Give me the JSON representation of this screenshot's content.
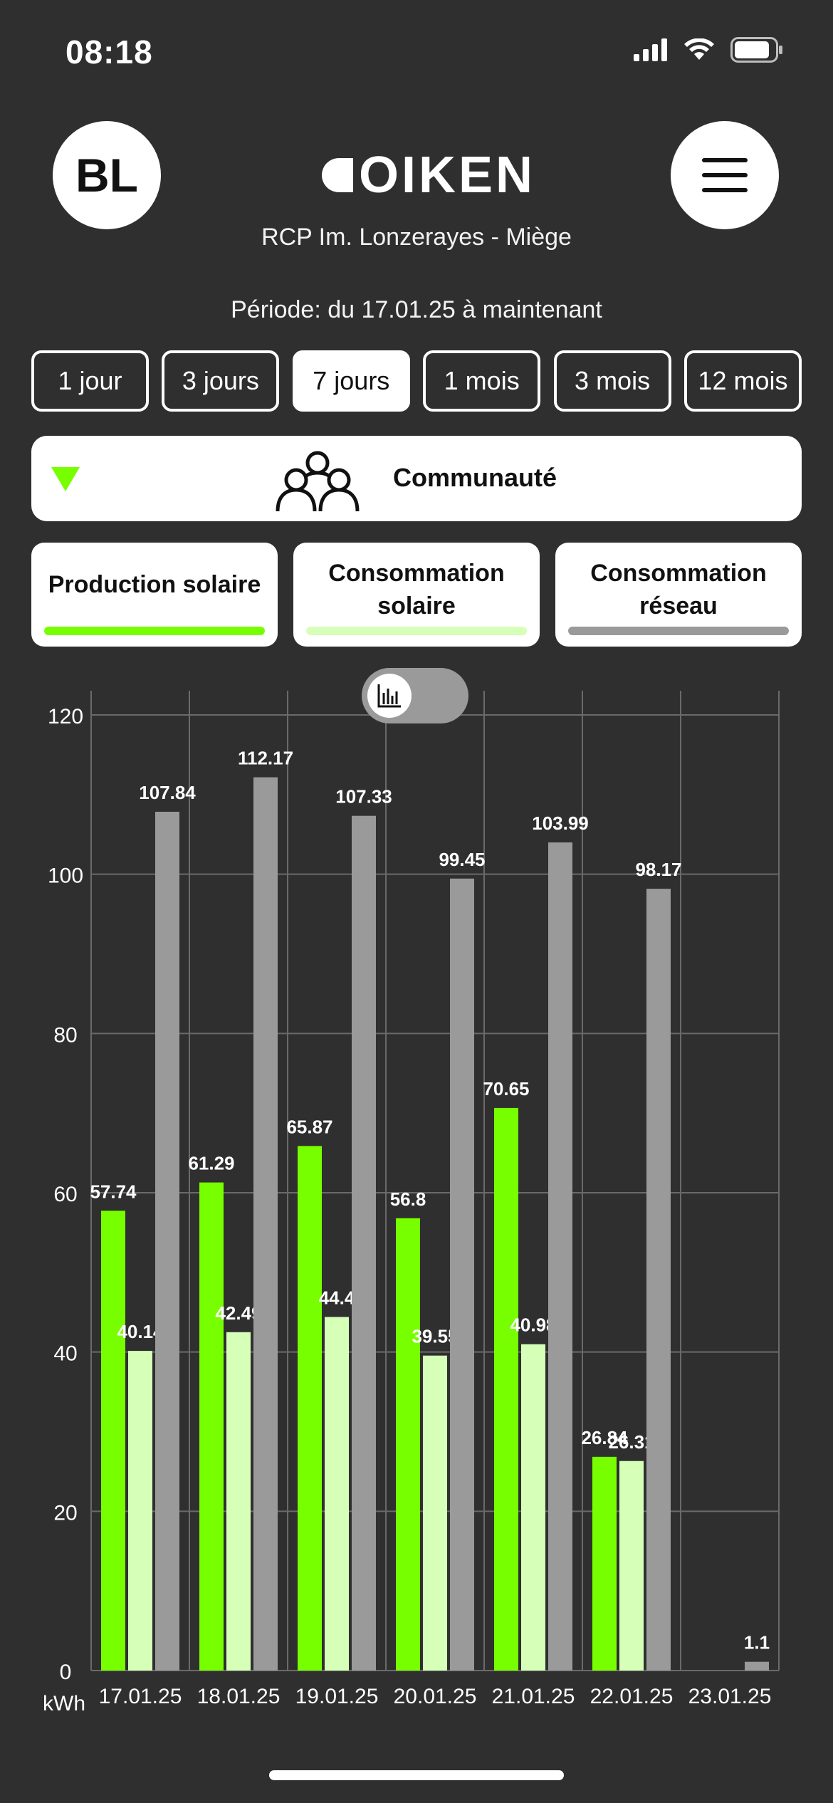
{
  "status_bar": {
    "time": "08:18",
    "icons": [
      "signal-icon",
      "wifi-icon",
      "battery-icon"
    ]
  },
  "header": {
    "avatar_initials": "BL",
    "logo_text": "OIKEN",
    "location": "RCP Im. Lonzerayes - Miège",
    "period": "Période: du 17.01.25 à maintenant"
  },
  "ranges": [
    {
      "label": "1 jour",
      "active": false
    },
    {
      "label": "3 jours",
      "active": false
    },
    {
      "label": "7 jours",
      "active": true
    },
    {
      "label": "1 mois",
      "active": false
    },
    {
      "label": "3 mois",
      "active": false
    },
    {
      "label": "12 mois",
      "active": false
    }
  ],
  "community": {
    "label": "Communauté"
  },
  "series_tabs": [
    {
      "line1": "Production solaire",
      "line2": "",
      "color": "#77ff00"
    },
    {
      "line1": "Consommation",
      "line2": "solaire",
      "color": "#d6ffb8"
    },
    {
      "line1": "Consommation",
      "line2": "réseau",
      "color": "#9a9a9a"
    }
  ],
  "colors": {
    "background": "#2f2f2f",
    "production": "#77ff00",
    "solar_consumption": "#d6ffb8",
    "grid_consumption": "#9a9a9a"
  },
  "chart_data": {
    "type": "bar",
    "categories": [
      "17.01.25",
      "18.01.25",
      "19.01.25",
      "20.01.25",
      "21.01.25",
      "22.01.25",
      "23.01.25"
    ],
    "series": [
      {
        "color": "#77ff00",
        "values": [
          57.74,
          61.29,
          65.87,
          56.8,
          70.65,
          26.84,
          null
        ]
      },
      {
        "color": "#d6ffb8",
        "values": [
          40.14,
          42.49,
          44.4,
          39.55,
          40.98,
          26.31,
          null
        ]
      },
      {
        "color": "#9a9a9a",
        "values": [
          107.84,
          112.17,
          107.33,
          99.45,
          103.99,
          98.17,
          1.1
        ]
      }
    ],
    "xlabel": "",
    "ylabel": "kWh",
    "ylim": [
      0,
      120
    ],
    "yticks": [
      0,
      20,
      40,
      60,
      80,
      100,
      120
    ],
    "grid": true,
    "data_labels": true
  }
}
